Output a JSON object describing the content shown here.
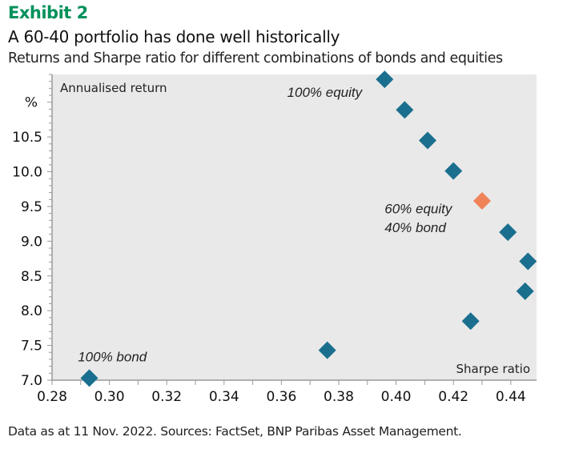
{
  "header": {
    "exhibit": "Exhibit 2",
    "title": "A 60-40 portfolio has done well historically",
    "subtitle": "Returns and Sharpe ratio for different combinations of bonds and equities"
  },
  "footer": {
    "source": "Data as at 11 Nov. 2022. Sources: FactSet, BNP Paribas Asset Management."
  },
  "colors": {
    "exhibit": "#00915a",
    "points": "#1b6f8e",
    "highlight": "#f08358",
    "plot_bg": "#e9e9e9"
  },
  "chart_data": {
    "type": "scatter",
    "xlabel": "Sharpe ratio",
    "ylabel": "Annualised return",
    "yunit": "%",
    "xlim": [
      0.28,
      0.449
    ],
    "ylim": [
      7.0,
      11.4
    ],
    "xticks": [
      "0.28",
      "0.30",
      "0.32",
      "0.34",
      "0.36",
      "0.38",
      "0.40",
      "0.42",
      "0.44"
    ],
    "yticks": [
      "7.0",
      "7.5",
      "8.0",
      "8.5",
      "9.0",
      "9.5",
      "10.0",
      "10.5"
    ],
    "grid": false,
    "points": [
      {
        "x": 0.293,
        "y": 7.03
      },
      {
        "x": 0.376,
        "y": 7.43
      },
      {
        "x": 0.426,
        "y": 7.85
      },
      {
        "x": 0.445,
        "y": 8.28
      },
      {
        "x": 0.446,
        "y": 8.71
      },
      {
        "x": 0.439,
        "y": 9.13
      },
      {
        "x": 0.43,
        "y": 9.58,
        "highlight": true
      },
      {
        "x": 0.42,
        "y": 10.01
      },
      {
        "x": 0.411,
        "y": 10.45
      },
      {
        "x": 0.403,
        "y": 10.89
      },
      {
        "x": 0.396,
        "y": 11.33
      }
    ],
    "annotations": [
      {
        "text": "100% equity",
        "x": 0.362,
        "y": 11.08
      },
      {
        "text": "60% equity",
        "x": 0.396,
        "y": 9.4
      },
      {
        "text": "40% bond",
        "x": 0.396,
        "y": 9.13
      },
      {
        "text": "100% bond",
        "x": 0.289,
        "y": 7.27
      }
    ]
  }
}
